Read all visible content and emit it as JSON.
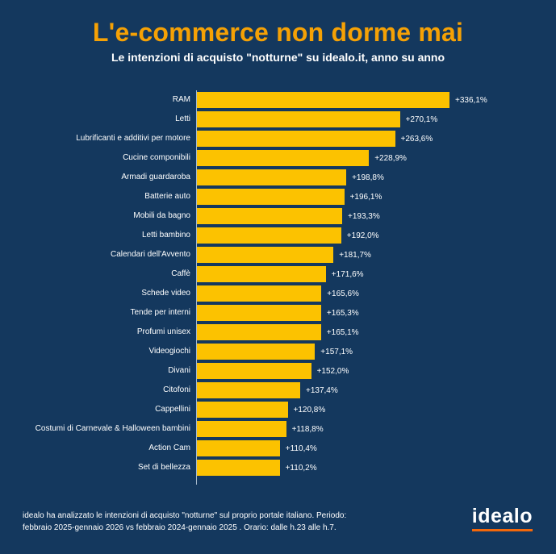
{
  "header": {
    "title": "L'e-commerce non dorme mai",
    "subtitle": "Le intenzioni di acquisto \"notturne\" su idealo.it, anno su anno"
  },
  "chart_data": {
    "type": "bar",
    "orientation": "horizontal",
    "title": "L'e-commerce non dorme mai",
    "subtitle": "Le intenzioni di acquisto \"notturne\" su idealo.it, anno su anno",
    "xlabel": "",
    "ylabel": "",
    "grid": false,
    "legend": false,
    "xlim": [
      0,
      360
    ],
    "bar_color": "#FCC200",
    "categories": [
      "RAM",
      "Letti",
      "Lubrificanti e additivi per motore",
      "Cucine componibili",
      "Armadi guardaroba",
      "Batterie auto",
      "Mobili da bagno",
      "Letti bambino",
      "Calendari dell'Avvento",
      "Caffè",
      "Schede video",
      "Tende per interni",
      "Profumi unisex",
      "Videogiochi",
      "Divani",
      "Citofoni",
      "Cappellini",
      "Costumi di Carnevale & Halloween bambini",
      "Action Cam",
      "Set di bellezza"
    ],
    "values": [
      336.1,
      270.1,
      263.6,
      228.9,
      198.8,
      196.1,
      193.3,
      192.0,
      181.7,
      171.6,
      165.6,
      165.3,
      165.1,
      157.1,
      152.0,
      137.4,
      120.8,
      118.8,
      110.4,
      110.2
    ],
    "value_labels": [
      "+336,1%",
      "+270,1%",
      "+263,6%",
      "+228,9%",
      "+198,8%",
      "+196,1%",
      "+193,3%",
      "+192,0%",
      "+181,7%",
      "+171,6%",
      "+165,6%",
      "+165,3%",
      "+165,1%",
      "+157,1%",
      "+152,0%",
      "+137,4%",
      "+120,8%",
      "+118,8%",
      "+110,4%",
      "+110,2%"
    ]
  },
  "footer": {
    "line1": "idealo ha analizzato le intenzioni di acquisto \"notturne\" sul proprio portale italiano. Periodo:",
    "line2": "febbraio 2025-gennaio 2026 vs febbraio 2024-gennaio 2025 . Orario: dalle h.23 alle h.7."
  },
  "logo": {
    "text": "idealo",
    "underline_color": "#F3680B"
  },
  "colors": {
    "background": "#14385E",
    "title": "#F5A105",
    "bar": "#FCC200",
    "text": "#FFFFFF",
    "axis_line": "#D7E4F0"
  }
}
